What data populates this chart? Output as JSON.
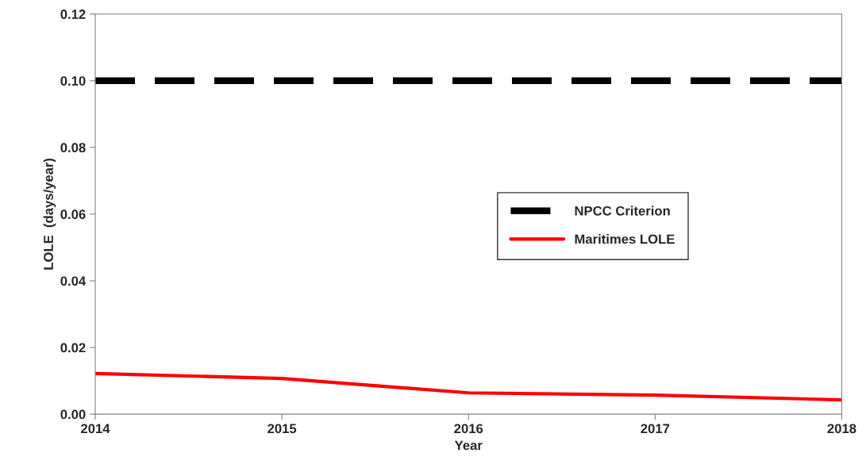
{
  "chart_data": {
    "type": "line",
    "xlabel": "Year",
    "ylabel": "LOLE  (days/year)",
    "x": [
      2014,
      2015,
      2016,
      2017,
      2018
    ],
    "series": [
      {
        "name": "NPCC Criterion",
        "color": "#000000",
        "line_style": "dashed",
        "values": [
          0.1,
          0.1,
          0.1,
          0.1,
          0.1
        ]
      },
      {
        "name": "Maritimes LOLE",
        "color": "#ff0000",
        "line_style": "solid",
        "values": [
          0.0122,
          0.0107,
          0.0064,
          0.0057,
          0.0043
        ]
      }
    ],
    "xlim": [
      2014,
      2018
    ],
    "xticks": [
      2014,
      2015,
      2016,
      2017,
      2018
    ],
    "ylim": [
      0,
      0.12
    ],
    "yticks": [
      {
        "value": 0,
        "label": "0.00"
      },
      {
        "value": 0.02,
        "label": "0.02"
      },
      {
        "value": 0.04,
        "label": "0.04"
      },
      {
        "value": 0.06,
        "label": "0.06"
      },
      {
        "value": 0.08,
        "label": "0.08"
      },
      {
        "value": 0.1,
        "label": "0.10"
      },
      {
        "value": 0.12,
        "label": "0.12"
      }
    ],
    "grid": false,
    "legend": "right",
    "marker": "none"
  }
}
